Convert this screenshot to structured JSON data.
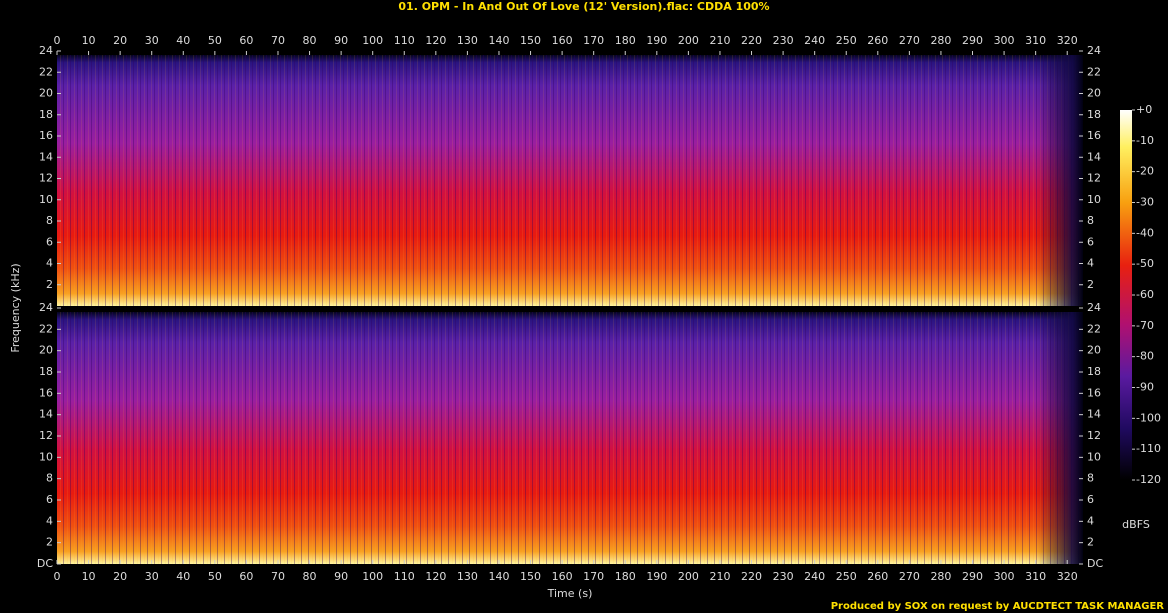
{
  "chart_data": {
    "type": "spectrogram",
    "title": "01. OPM - In And Out Of Love (12' Version).flac: CDDA 100%",
    "x_label": "Time (s)",
    "y_label": "Frequency (kHz)",
    "footer": "Produced by SOX on request by AUCDTECT TASK MANAGER",
    "xlim": [
      0,
      325
    ],
    "xticks": [
      0,
      10,
      20,
      30,
      40,
      50,
      60,
      70,
      80,
      90,
      100,
      110,
      120,
      130,
      140,
      150,
      160,
      170,
      180,
      190,
      200,
      210,
      220,
      230,
      240,
      250,
      260,
      270,
      280,
      290,
      300,
      310,
      320
    ],
    "channels": [
      {
        "ylim": [
          0,
          24
        ],
        "yticks": [
          2,
          4,
          6,
          8,
          10,
          12,
          14,
          16,
          18,
          20,
          22,
          24
        ]
      },
      {
        "ylim": [
          0,
          24
        ],
        "yticks": [
          {
            "value": 0,
            "label": "DC"
          },
          2,
          4,
          6,
          8,
          10,
          12,
          14,
          16,
          18,
          20,
          22,
          24
        ]
      }
    ],
    "colorbar": {
      "label": "dBFS",
      "lim": [
        -120,
        0
      ],
      "ticks": [
        {
          "value": 0,
          "label": "+0"
        },
        -10,
        -20,
        -30,
        -40,
        -50,
        -60,
        -70,
        -80,
        -90,
        -100,
        -110,
        -120
      ]
    }
  }
}
